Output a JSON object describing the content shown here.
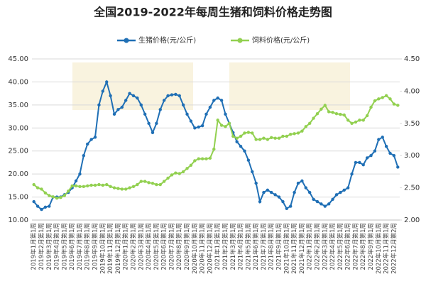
{
  "chart_data": {
    "type": "line",
    "title": "全国2019-2022年每周生猪和饲料价格走势图",
    "categories": [
      "2019年1月第1周",
      null,
      "2019年2月第1周",
      null,
      "2019年3月第1周",
      null,
      "2019年4月第1周",
      null,
      "2019年5月第1周",
      null,
      "2019年6月第1周",
      null,
      "2019年7月第1周",
      null,
      "2019年8月第1周",
      null,
      "2019年9月第1周",
      null,
      "2019年10月第1周",
      null,
      "2019年11月第1周",
      null,
      "2019年12月第1周",
      null,
      "2020年1月第1周",
      null,
      "2020年2月第1周",
      null,
      "2020年3月第1周",
      null,
      "2020年4月第1周",
      null,
      "2020年5月第1周",
      null,
      "2020年6月第1周",
      null,
      "2020年7月第1周",
      null,
      "2020年8月第1周",
      null,
      "2020年9月第1周",
      null,
      "2020年10月第1周",
      null,
      "2020年11月第1周",
      null,
      "2020年12月第1周",
      null,
      "2021年1月第1周",
      null,
      "2021年2月第1周",
      null,
      "2021年3月第1周",
      null,
      "2021年4月第1周",
      null,
      "2021年5月第1周",
      null,
      "2021年6月第1周",
      null,
      "2021年7月第1周",
      null,
      "2021年8月第1周",
      null,
      "2021年9月第1周",
      null,
      "2021年10月第1周",
      null,
      "2021年11月第1周",
      null,
      "2021年12月第1周",
      null,
      "2022年1月第1周",
      null,
      "2022年2月第1周",
      null,
      "2022年3月第1周",
      null,
      "2022年4月第1周",
      null,
      "2022年5月第1周",
      null,
      "2022年6月第1周",
      null,
      "2022年7月第1周",
      null,
      "2022年8月第1周",
      null,
      "2022年9月第1周",
      null,
      "2022年10月第1周",
      null,
      "2022年11月第1周",
      null,
      "2022年12月第2周",
      null
    ],
    "series": [
      {
        "name": "生猪价格(元/公斤)",
        "color": "#1f6fb5",
        "axis": "y",
        "values": [
          14,
          13,
          12.3,
          12.8,
          13,
          15,
          15,
          15,
          15.5,
          16,
          17,
          18.5,
          20,
          24,
          26.5,
          27.5,
          28,
          35,
          38,
          40,
          37,
          33,
          34,
          34.5,
          36,
          37.5,
          37,
          36.5,
          35,
          33,
          31,
          29,
          31,
          34,
          36,
          37,
          37.2,
          37.3,
          37,
          35,
          33,
          31.5,
          30,
          30.2,
          30.5,
          33,
          34.5,
          36,
          36.5,
          36,
          33,
          31,
          29,
          27,
          26,
          25,
          23,
          20.5,
          18,
          14,
          16,
          16.5,
          16,
          15.5,
          15,
          14,
          12.5,
          13,
          16,
          18,
          18.5,
          17,
          16,
          14.5,
          14,
          13.5,
          13,
          13.5,
          14.5,
          15.5,
          16,
          16.5,
          17,
          20,
          22.5,
          22.5,
          22,
          23.5,
          24,
          25,
          27.5,
          28,
          26,
          24.5,
          24,
          21.5
        ]
      },
      {
        "name": "饲料价格(元/公斤)",
        "color": "#92d050",
        "axis": "y2",
        "values": [
          2.55,
          2.5,
          2.48,
          2.42,
          2.38,
          2.36,
          2.34,
          2.35,
          2.38,
          2.45,
          2.53,
          2.53,
          2.52,
          2.52,
          2.53,
          2.54,
          2.54,
          2.55,
          2.54,
          2.55,
          2.52,
          2.5,
          2.49,
          2.48,
          2.48,
          2.5,
          2.52,
          2.55,
          2.6,
          2.6,
          2.58,
          2.57,
          2.55,
          2.55,
          2.6,
          2.65,
          2.7,
          2.73,
          2.72,
          2.75,
          2.8,
          2.85,
          2.92,
          2.95,
          2.95,
          2.95,
          2.96,
          3.1,
          3.55,
          3.47,
          3.45,
          3.5,
          3.3,
          3.27,
          3.3,
          3.35,
          3.36,
          3.35,
          3.25,
          3.25,
          3.27,
          3.25,
          3.28,
          3.27,
          3.27,
          3.3,
          3.3,
          3.33,
          3.34,
          3.35,
          3.38,
          3.45,
          3.5,
          3.58,
          3.65,
          3.72,
          3.78,
          3.68,
          3.67,
          3.65,
          3.64,
          3.63,
          3.55,
          3.5,
          3.52,
          3.55,
          3.55,
          3.62,
          3.75,
          3.85,
          3.88,
          3.9,
          3.93,
          3.88,
          3.8,
          3.78
        ]
      }
    ],
    "ylim": [
      10,
      45
    ],
    "yticks": [
      {
        "value": 10,
        "label": "10.00"
      },
      {
        "value": 15,
        "label": "15.00"
      },
      {
        "value": 20,
        "label": "20.00"
      },
      {
        "value": 25,
        "label": "25.00"
      },
      {
        "value": 30,
        "label": "30.00"
      },
      {
        "value": 35,
        "label": "35.00"
      },
      {
        "value": 40,
        "label": "40.00"
      },
      {
        "value": 45,
        "label": "45.00"
      }
    ],
    "y2lim": [
      2,
      4.5
    ],
    "y2ticks": [
      {
        "value": 2,
        "label": "2.00"
      },
      {
        "value": 2.5,
        "label": "2.50"
      },
      {
        "value": 3,
        "label": "3.00"
      },
      {
        "value": 3.5,
        "label": "3.50"
      },
      {
        "value": 4,
        "label": "4.00"
      },
      {
        "value": 4.5,
        "label": "4.50"
      }
    ],
    "grid": true,
    "legend": "top"
  }
}
